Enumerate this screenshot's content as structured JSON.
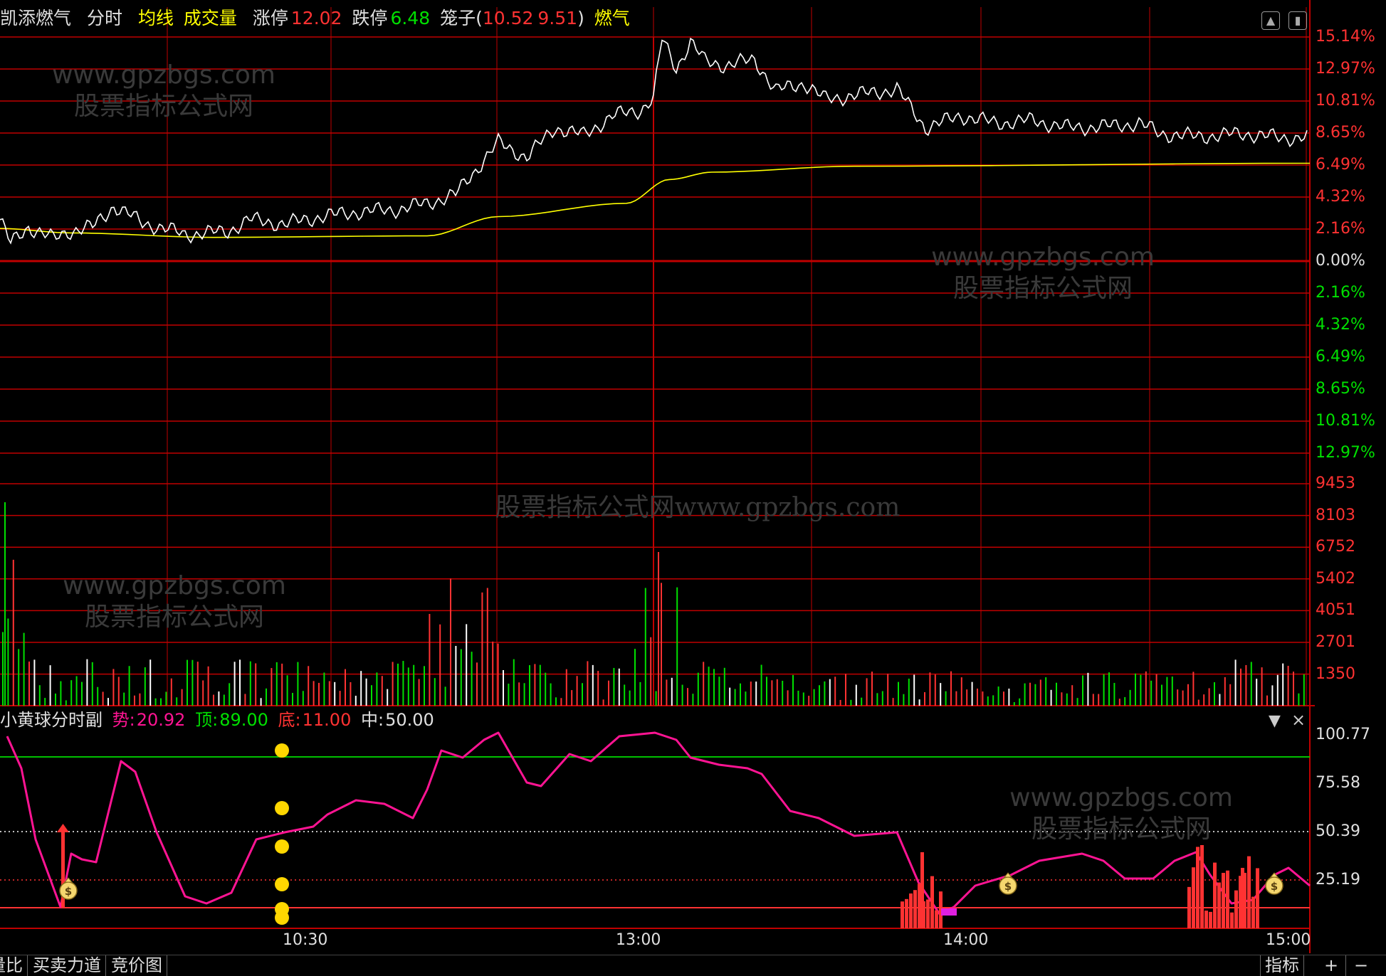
{
  "header": {
    "stock_name": "凯添燃气",
    "tab_intraday": "分时",
    "tab_avg_line": "均线",
    "tab_volume": "成交量",
    "limit_up_label": "涨停",
    "limit_up_value": "12.02",
    "limit_down_label": "跌停",
    "limit_down_value": "6.48",
    "cage_label": "笼子(",
    "cage_high": "10.52",
    "cage_low": "9.51",
    "cage_close": ")",
    "sector": "燃气"
  },
  "price_axis": {
    "up_labels": [
      "15.14%",
      "12.97%",
      "10.81%",
      "8.65%",
      "6.49%",
      "4.32%",
      "2.16%"
    ],
    "zero_label": "0.00%",
    "down_labels": [
      "2.16%",
      "4.32%",
      "6.49%",
      "8.65%",
      "10.81%",
      "12.97%"
    ]
  },
  "volume_axis": {
    "labels": [
      "9453",
      "8103",
      "6752",
      "5402",
      "4051",
      "2701",
      "1350"
    ]
  },
  "indicator": {
    "name": "小黄球分时副",
    "trend_label": "势:",
    "trend_value": "20.92",
    "top_label": "顶:",
    "top_value": "89.00",
    "bottom_label": "底:",
    "bottom_value": "11.00",
    "mid_label": "中:",
    "mid_value": "50.00",
    "axis_labels": [
      "100.77",
      "75.58",
      "50.39",
      "25.19"
    ]
  },
  "time_axis": {
    "labels": [
      "10:30",
      "13:00",
      "14:00",
      "15:00"
    ]
  },
  "watermarks": {
    "site": "www.gpzbgs.com",
    "name": "股票指标公式网",
    "combined": "股票指标公式网www.gpzbgs.com"
  },
  "bottom_tabs": {
    "tab1": "量比",
    "tab2": "买卖力道",
    "tab3": "竞价图",
    "indicator_button": "指标",
    "plus": "+",
    "minus": "−"
  },
  "icons": {
    "collapse": "collapse-icon",
    "panel_toggle": "panel-toggle-icon",
    "dropdown": "chevron-down-icon",
    "close": "close-icon",
    "money_bag": "money-bag-icon"
  },
  "colors": {
    "grid_red": "#c00000",
    "price_line": "#ffffff",
    "avg_line": "#ffff00",
    "up_red": "#ff3232",
    "down_green": "#00e000",
    "label_yellow": "#ffff00",
    "indicator_pink": "#ff1493",
    "yellow_ball": "#ffd700",
    "top_line_green": "#00c000"
  }
}
